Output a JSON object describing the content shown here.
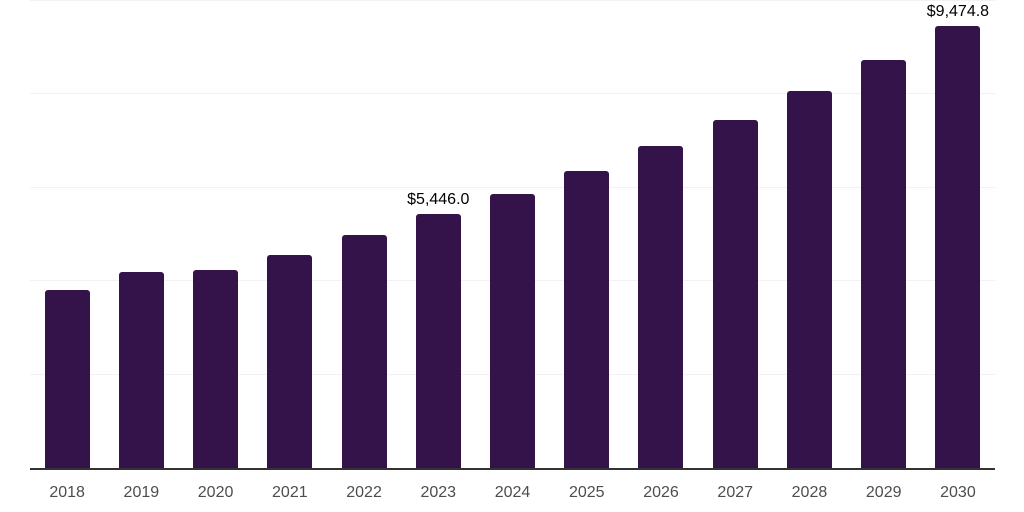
{
  "chart_data": {
    "type": "bar",
    "title": "",
    "xlabel": "",
    "ylabel": "",
    "categories": [
      "2018",
      "2019",
      "2020",
      "2021",
      "2022",
      "2023",
      "2024",
      "2025",
      "2026",
      "2027",
      "2028",
      "2029",
      "2030"
    ],
    "values": [
      3815,
      4195,
      4230,
      4565,
      4985,
      5446.0,
      5875,
      6360,
      6895,
      7460,
      8075,
      8735,
      9474.8
    ],
    "data_labels": [
      "",
      "",
      "",
      "",
      "",
      "$5,446.0",
      "",
      "",
      "",
      "",
      "",
      "",
      "$9,474.8"
    ],
    "ylim": [
      0,
      10000
    ],
    "gridline_interval": 2000,
    "grid": true,
    "legend": "none",
    "y_axis_tick_labels_visible": false,
    "bar_color": "#331349",
    "axis_line_color": "#333333",
    "gridline_color": "#f2f2f2",
    "tick_label_color": "#4d4d4d",
    "data_label_color": "#000000",
    "background_color": "#ffffff"
  }
}
